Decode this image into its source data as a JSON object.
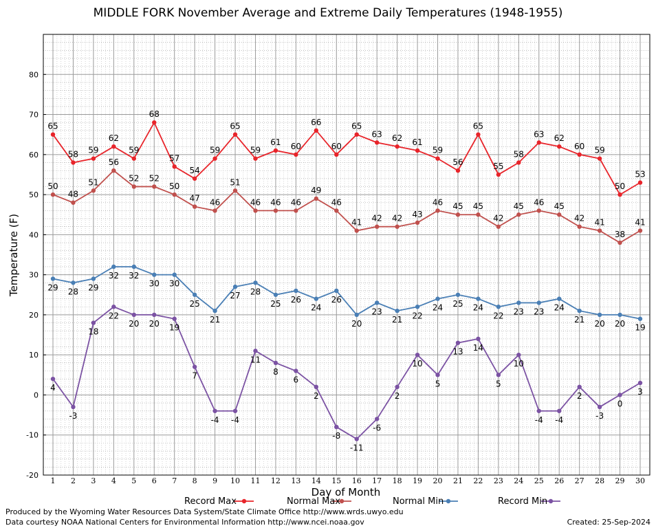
{
  "chart_data": {
    "type": "line",
    "title": "MIDDLE FORK November Average and Extreme Daily Temperatures (1948-1955)",
    "xlabel": "Day of Month",
    "ylabel": "Temperature (F)",
    "xlim": [
      1,
      30
    ],
    "ylim": [
      -20,
      90
    ],
    "y_ticks": [
      -20,
      -10,
      0,
      10,
      20,
      30,
      40,
      50,
      60,
      70,
      80
    ],
    "grid": true,
    "legend_position": "bottom",
    "x": [
      1,
      2,
      3,
      4,
      5,
      6,
      7,
      8,
      9,
      10,
      11,
      12,
      13,
      14,
      15,
      16,
      17,
      18,
      19,
      20,
      21,
      22,
      23,
      24,
      25,
      26,
      27,
      28,
      29,
      30
    ],
    "series": [
      {
        "name": "Record Max",
        "color": "#e8242a",
        "values": [
          65,
          58,
          59,
          62,
          59,
          68,
          57,
          54,
          59,
          65,
          59,
          61,
          60,
          66,
          60,
          65,
          63,
          62,
          61,
          59,
          56,
          65,
          55,
          58,
          63,
          62,
          60,
          59,
          50,
          53
        ],
        "label_side": "above"
      },
      {
        "name": "Normal Max",
        "color": "#c0504d",
        "values": [
          50,
          48,
          51,
          56,
          52,
          52,
          50,
          47,
          46,
          51,
          46,
          46,
          46,
          49,
          46,
          41,
          42,
          42,
          43,
          46,
          45,
          45,
          42,
          45,
          46,
          45,
          42,
          41,
          38,
          41
        ],
        "label_side": "above"
      },
      {
        "name": "Normal Min",
        "color": "#4a7fb5",
        "values": [
          29,
          28,
          29,
          32,
          32,
          30,
          30,
          25,
          21,
          27,
          28,
          25,
          26,
          24,
          26,
          20,
          23,
          21,
          22,
          24,
          25,
          24,
          22,
          23,
          23,
          24,
          21,
          20,
          20,
          19
        ],
        "label_side": "below"
      },
      {
        "name": "Record Min",
        "color": "#7b52a3",
        "values": [
          4,
          -3,
          18,
          22,
          20,
          20,
          19,
          7,
          -4,
          -4,
          11,
          8,
          6,
          2,
          -8,
          -11,
          -6,
          2,
          10,
          5,
          13,
          14,
          5,
          10,
          -4,
          -4,
          2,
          -3,
          0,
          3
        ],
        "label_side": "below"
      }
    ]
  },
  "footer": {
    "credit_line_1": "Produced by the Wyoming Water Resources Data System/State Climate Office http://www.wrds.uwyo.edu",
    "credit_line_2": "Data courtesy NOAA National Centers for Environmental Information http://www.ncei.noaa.gov",
    "created": "Created:  25-Sep-2024"
  }
}
